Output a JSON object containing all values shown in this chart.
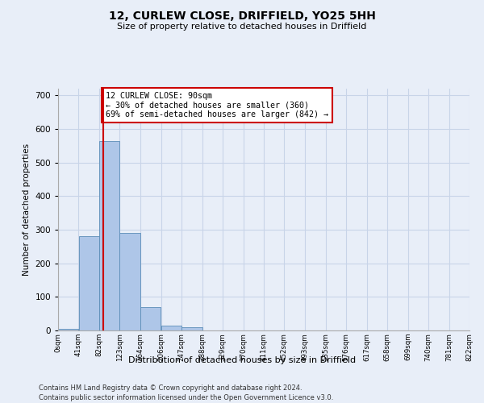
{
  "title1": "12, CURLEW CLOSE, DRIFFIELD, YO25 5HH",
  "title2": "Size of property relative to detached houses in Driffield",
  "xlabel": "Distribution of detached houses by size in Driffield",
  "ylabel": "Number of detached properties",
  "footnote1": "Contains HM Land Registry data © Crown copyright and database right 2024.",
  "footnote2": "Contains public sector information licensed under the Open Government Licence v3.0.",
  "bin_edges": [
    0,
    41,
    82,
    123,
    164,
    206,
    247,
    288,
    329,
    370,
    411,
    452,
    493,
    535,
    576,
    617,
    658,
    699,
    740,
    781,
    822
  ],
  "bin_labels": [
    "0sqm",
    "41sqm",
    "82sqm",
    "123sqm",
    "164sqm",
    "206sqm",
    "247sqm",
    "288sqm",
    "329sqm",
    "370sqm",
    "411sqm",
    "452sqm",
    "493sqm",
    "535sqm",
    "576sqm",
    "617sqm",
    "658sqm",
    "699sqm",
    "740sqm",
    "781sqm",
    "822sqm"
  ],
  "bar_heights": [
    5,
    280,
    565,
    290,
    70,
    15,
    10,
    0,
    0,
    0,
    0,
    0,
    0,
    0,
    0,
    0,
    0,
    0,
    0,
    0
  ],
  "bar_color": "#aec6e8",
  "bar_edgecolor": "#5b8db8",
  "grid_color": "#c8d4e8",
  "background_color": "#e8eef8",
  "vline_x": 90,
  "vline_color": "#cc0000",
  "annotation_text": "12 CURLEW CLOSE: 90sqm\n← 30% of detached houses are smaller (360)\n69% of semi-detached houses are larger (842) →",
  "annotation_box_color": "#ffffff",
  "annotation_box_edgecolor": "#cc0000",
  "ylim": [
    0,
    720
  ],
  "yticks": [
    0,
    100,
    200,
    300,
    400,
    500,
    600,
    700
  ]
}
